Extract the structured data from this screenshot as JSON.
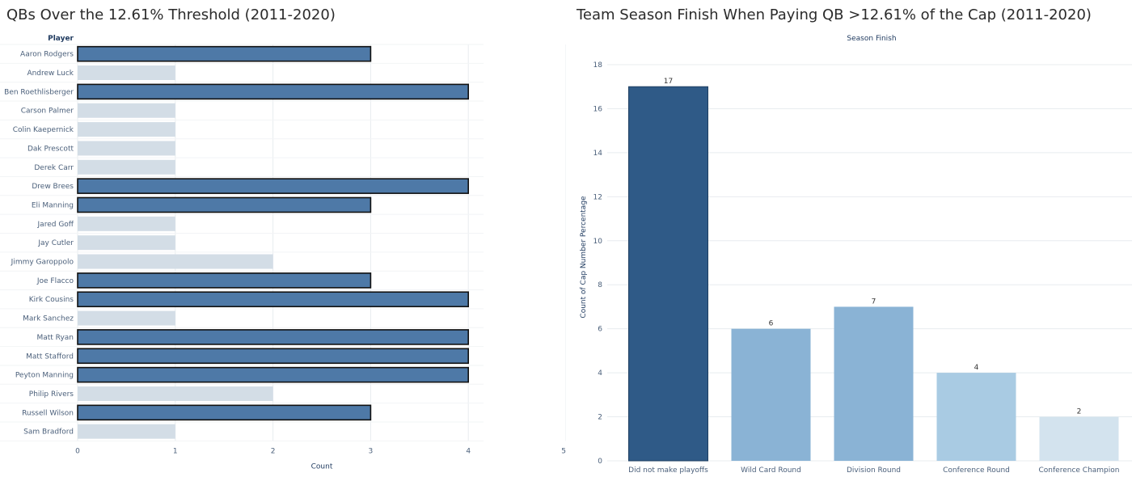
{
  "left_chart": {
    "title": "QBs Over the 12.61% Threshold (2011-2020)"
  },
  "right_chart": {
    "title": "Team Season Finish When Paying QB >12.61% of the Cap (2011-2020)"
  },
  "colors": {
    "highlight": "#4e79a7",
    "muted": "#d3dde6",
    "highlight_border": "#111111",
    "grid": "#e8ecef",
    "bar_colors": [
      "#2f5a87",
      "#8ab3d5",
      "#8ab3d5",
      "#a9cbe3",
      "#d3e3ee"
    ]
  },
  "chart_data": [
    {
      "type": "bar",
      "orientation": "horizontal",
      "title": "QBs Over the 12.61% Threshold (2011-2020)",
      "ylabel": "Player",
      "xlabel": "Count",
      "xlim": [
        0,
        5
      ],
      "xticks": [
        0,
        1,
        2,
        3,
        4,
        5
      ],
      "grid": true,
      "categories": [
        "Aaron Rodgers",
        "Andrew Luck",
        "Ben Roethlisberger",
        "Carson Palmer",
        "Colin Kaepernick",
        "Dak Prescott",
        "Derek Carr",
        "Drew Brees",
        "Eli Manning",
        "Jared Goff",
        "Jay Cutler",
        "Jimmy Garoppolo",
        "Joe Flacco",
        "Kirk Cousins",
        "Mark Sanchez",
        "Matt Ryan",
        "Matt Stafford",
        "Peyton Manning",
        "Philip Rivers",
        "Russell Wilson",
        "Sam Bradford"
      ],
      "values": [
        3,
        1,
        4,
        1,
        1,
        1,
        1,
        4,
        3,
        1,
        1,
        2,
        3,
        4,
        1,
        4,
        4,
        4,
        2,
        3,
        1
      ],
      "highlighted": [
        true,
        false,
        true,
        false,
        false,
        false,
        false,
        true,
        true,
        false,
        false,
        false,
        true,
        true,
        false,
        true,
        true,
        true,
        false,
        true,
        false
      ]
    },
    {
      "type": "bar",
      "orientation": "vertical",
      "title": "Team Season Finish When Paying QB >12.61% of the Cap (2011-2020)",
      "xlabel": "Season Finish",
      "ylabel": "Count of Cap Number Percentage",
      "ylim": [
        0,
        18
      ],
      "yticks": [
        0,
        2,
        4,
        6,
        8,
        10,
        12,
        14,
        16,
        18
      ],
      "grid": true,
      "categories": [
        "Did not make playoffs",
        "Wild Card Round",
        "Division Round",
        "Conference Round",
        "Conference Champion"
      ],
      "values": [
        17,
        6,
        7,
        4,
        2
      ]
    }
  ]
}
